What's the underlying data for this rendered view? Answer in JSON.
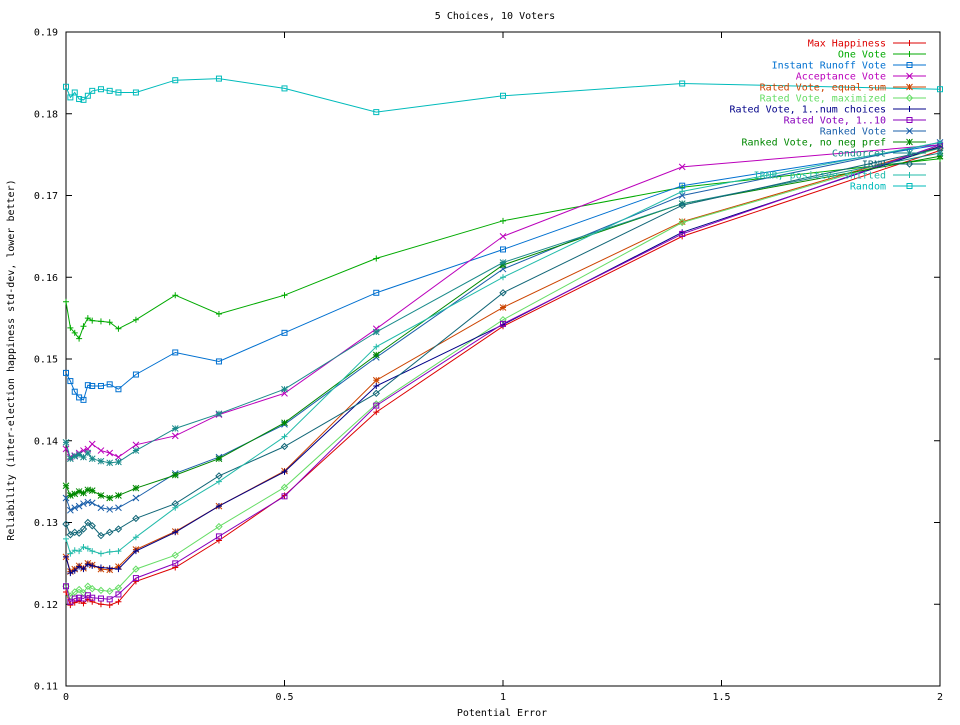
{
  "chart_data": {
    "type": "line",
    "title": "5 Choices, 10 Voters",
    "xlabel": "Potential Error",
    "ylabel": "Reliability (inter-election happiness std-dev, lower better)",
    "xlim": [
      0,
      2
    ],
    "ylim": [
      0.11,
      0.19
    ],
    "x_ticks": [
      "0",
      "0.5",
      "1",
      "1.5",
      "2"
    ],
    "y_ticks": [
      "0.11",
      "0.12",
      "0.13",
      "0.14",
      "0.15",
      "0.16",
      "0.17",
      "0.18",
      "0.19"
    ],
    "grid": false,
    "legend_position": "top-right",
    "x": [
      0,
      0.01,
      0.02,
      0.03,
      0.04,
      0.05,
      0.06,
      0.08,
      0.1,
      0.12,
      0.16,
      0.25,
      0.35,
      0.5,
      0.71,
      1.0,
      1.41,
      2.0
    ],
    "series": [
      {
        "name": "Max Happiness",
        "color": "#dd0000",
        "marker": "plus",
        "values": [
          0.1215,
          0.1199,
          0.1202,
          0.1204,
          0.1201,
          0.1206,
          0.1203,
          0.12,
          0.1199,
          0.1203,
          0.1228,
          0.1245,
          0.1278,
          0.1333,
          0.1435,
          0.154,
          0.165,
          0.1755
        ]
      },
      {
        "name": "One Vote",
        "color": "#00aa00",
        "marker": "plus",
        "values": [
          0.157,
          0.1538,
          0.1532,
          0.1525,
          0.154,
          0.155,
          0.1547,
          0.1546,
          0.1545,
          0.1537,
          0.1548,
          0.1578,
          0.1555,
          0.1578,
          0.1623,
          0.1669,
          0.171,
          0.1745
        ]
      },
      {
        "name": "Instant Runoff Vote",
        "color": "#0070d0",
        "marker": "square",
        "values": [
          0.1483,
          0.1473,
          0.146,
          0.1453,
          0.145,
          0.1468,
          0.1467,
          0.1467,
          0.1469,
          0.1463,
          0.1481,
          0.1508,
          0.1497,
          0.1532,
          0.1581,
          0.1634,
          0.1712,
          0.1762
        ]
      },
      {
        "name": "Acceptance Vote",
        "color": "#bb00bb",
        "marker": "x",
        "values": [
          0.139,
          0.138,
          0.1382,
          0.1385,
          0.1388,
          0.139,
          0.1396,
          0.1388,
          0.1385,
          0.138,
          0.1395,
          0.1406,
          0.1432,
          0.1458,
          0.1537,
          0.165,
          0.1735,
          0.1762
        ]
      },
      {
        "name": "Rated Vote, equal sum",
        "color": "#cc4400",
        "marker": "star",
        "values": [
          0.1258,
          0.124,
          0.1243,
          0.1247,
          0.1244,
          0.125,
          0.1248,
          0.1243,
          0.1242,
          0.1246,
          0.1267,
          0.1289,
          0.132,
          0.1363,
          0.1474,
          0.1563,
          0.1668,
          0.176
        ]
      },
      {
        "name": "Rated Vote, maximized",
        "color": "#66dd66",
        "marker": "diamond",
        "values": [
          0.1222,
          0.121,
          0.1215,
          0.1218,
          0.1214,
          0.1222,
          0.1219,
          0.1217,
          0.1216,
          0.122,
          0.1243,
          0.126,
          0.1295,
          0.1343,
          0.1445,
          0.1548,
          0.1667,
          0.1758
        ]
      },
      {
        "name": "Rated Vote, 1..num choices",
        "color": "#000088",
        "marker": "plus",
        "values": [
          0.1258,
          0.1238,
          0.1241,
          0.1246,
          0.1243,
          0.1249,
          0.1247,
          0.1245,
          0.1244,
          0.1243,
          0.1265,
          0.1288,
          0.132,
          0.1362,
          0.1467,
          0.1542,
          0.1655,
          0.176
        ]
      },
      {
        "name": "Rated Vote, 1..10",
        "color": "#8800bb",
        "marker": "square",
        "values": [
          0.1222,
          0.1203,
          0.1207,
          0.1208,
          0.1207,
          0.1211,
          0.1208,
          0.1207,
          0.1206,
          0.1212,
          0.1232,
          0.125,
          0.1283,
          0.1332,
          0.1443,
          0.1543,
          0.1653,
          0.1762
        ]
      },
      {
        "name": "Ranked Vote",
        "color": "#1a5faa",
        "marker": "x",
        "values": [
          0.133,
          0.1315,
          0.1318,
          0.132,
          0.1323,
          0.1325,
          0.1324,
          0.1318,
          0.1316,
          0.1318,
          0.133,
          0.136,
          0.138,
          0.142,
          0.1502,
          0.161,
          0.17,
          0.1765
        ]
      },
      {
        "name": "Ranked Vote, no neg pref",
        "color": "#008800",
        "marker": "star",
        "values": [
          0.1345,
          0.1333,
          0.1335,
          0.1338,
          0.1336,
          0.134,
          0.1339,
          0.1333,
          0.133,
          0.1333,
          0.1342,
          0.1358,
          0.1378,
          0.1422,
          0.1505,
          0.1615,
          0.169,
          0.1748
        ]
      },
      {
        "name": "Condorcet",
        "color": "#1a8a8a",
        "marker": "star",
        "values": [
          0.1398,
          0.1378,
          0.1381,
          0.1383,
          0.138,
          0.1385,
          0.1378,
          0.1375,
          0.1373,
          0.1374,
          0.1388,
          0.1415,
          0.1433,
          0.1463,
          0.1533,
          0.1618,
          0.169,
          0.1752
        ]
      },
      {
        "name": "IRNR",
        "color": "#116677",
        "marker": "diamond",
        "values": [
          0.1298,
          0.1285,
          0.1288,
          0.1287,
          0.1292,
          0.13,
          0.1296,
          0.1284,
          0.1288,
          0.1292,
          0.1305,
          0.1323,
          0.1357,
          0.1393,
          0.1458,
          0.1581,
          0.1688,
          0.1758
        ]
      },
      {
        "name": "IRNR, positive shifted",
        "color": "#22bbaa",
        "marker": "plus",
        "values": [
          0.128,
          0.1262,
          0.1266,
          0.1265,
          0.127,
          0.1268,
          0.1265,
          0.1262,
          0.1264,
          0.1265,
          0.1282,
          0.1318,
          0.135,
          0.1405,
          0.1515,
          0.16,
          0.1705,
          0.1765
        ]
      },
      {
        "name": "Random",
        "color": "#00bbbb",
        "marker": "square",
        "values": [
          0.1833,
          0.182,
          0.1826,
          0.1818,
          0.1817,
          0.1822,
          0.1828,
          0.183,
          0.1828,
          0.1826,
          0.1826,
          0.1841,
          0.1843,
          0.1831,
          0.1802,
          0.1822,
          0.1837,
          0.183
        ]
      }
    ]
  }
}
